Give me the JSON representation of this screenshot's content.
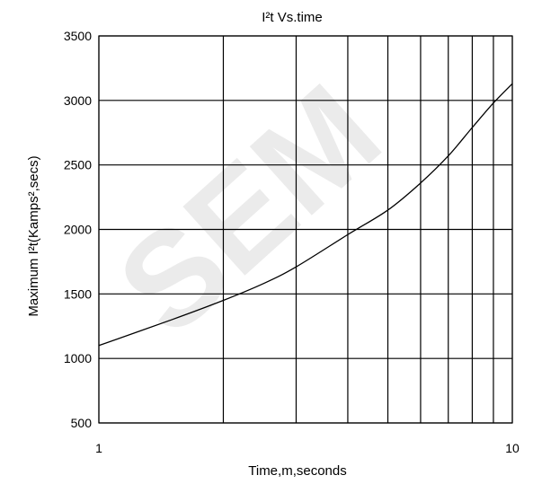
{
  "chart_data": {
    "type": "line",
    "title": "I²t  Vs.time",
    "xlabel": "Time,m,seconds",
    "ylabel": "Maximum I²t(Kamps²,secs)",
    "x_scale": "log",
    "xlim": [
      1,
      10
    ],
    "ylim": [
      500,
      3500
    ],
    "x_ticks": [
      1,
      10
    ],
    "x_tick_labels": [
      "1",
      "10"
    ],
    "x_gridlines": [
      1,
      2,
      3,
      4,
      5,
      6,
      7,
      8,
      9,
      10
    ],
    "y_ticks": [
      500,
      1000,
      1500,
      2000,
      2500,
      3000,
      3500
    ],
    "y_tick_labels": [
      "500",
      "1000",
      "1500",
      "2000",
      "2500",
      "3000",
      "3500"
    ],
    "grid": true,
    "legend": "none",
    "series": [
      {
        "x": [
          1,
          1.5,
          2,
          2.5,
          3,
          4,
          5,
          6,
          7,
          8,
          9,
          10
        ],
        "values": [
          1100,
          1300,
          1450,
          1580,
          1710,
          1960,
          2150,
          2360,
          2570,
          2790,
          2980,
          3130
        ],
        "color": "#000000"
      }
    ]
  },
  "watermark": {
    "text": "SEM"
  }
}
